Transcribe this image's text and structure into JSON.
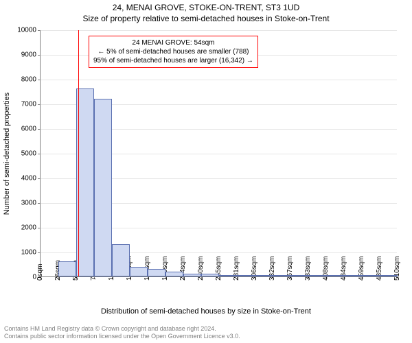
{
  "title_line1": "24, MENAI GROVE, STOKE-ON-TRENT, ST3 1UD",
  "title_line2": "Size of property relative to semi-detached houses in Stoke-on-Trent",
  "ylabel": "Number of semi-detached properties",
  "xlabel": "Distribution of semi-detached houses by size in Stoke-on-Trent",
  "footer_line1": "Contains HM Land Registry data © Crown copyright and database right 2024.",
  "footer_line2": "Contains public sector information licensed under the Open Government Licence v3.0.",
  "chart": {
    "type": "histogram",
    "ymax": 10000,
    "ytick_step": 1000,
    "yticks": [
      0,
      1000,
      2000,
      3000,
      4000,
      5000,
      6000,
      7000,
      8000,
      9000,
      10000
    ],
    "xticks": [
      "0sqm",
      "26sqm",
      "51sqm",
      "77sqm",
      "102sqm",
      "128sqm",
      "153sqm",
      "179sqm",
      "204sqm",
      "230sqm",
      "255sqm",
      "281sqm",
      "306sqm",
      "332sqm",
      "357sqm",
      "383sqm",
      "408sqm",
      "434sqm",
      "459sqm",
      "485sqm",
      "510sqm"
    ],
    "bar_fill": "#cfd9f2",
    "bar_stroke": "#5a6fb0",
    "bar_values": [
      0,
      600,
      7600,
      7200,
      1300,
      400,
      300,
      200,
      100,
      100,
      50,
      50,
      50,
      30,
      30,
      20,
      20,
      20,
      10,
      10
    ],
    "background_color": "#ffffff",
    "grid_color": "#e6e6e6",
    "axis_color": "#808080",
    "tick_fontsize": 10,
    "label_fontsize": 11,
    "title_fontsize": 12
  },
  "marker": {
    "x_sqm": 54,
    "color": "#ff0000"
  },
  "annotation": {
    "line1": "24 MENAI GROVE: 54sqm",
    "line2": "← 5% of semi-detached houses are smaller (788)",
    "line3": "95% of semi-detached houses are larger (16,342) →",
    "border_color": "#ff0000",
    "background": "#ffffff",
    "fontsize": 10
  }
}
